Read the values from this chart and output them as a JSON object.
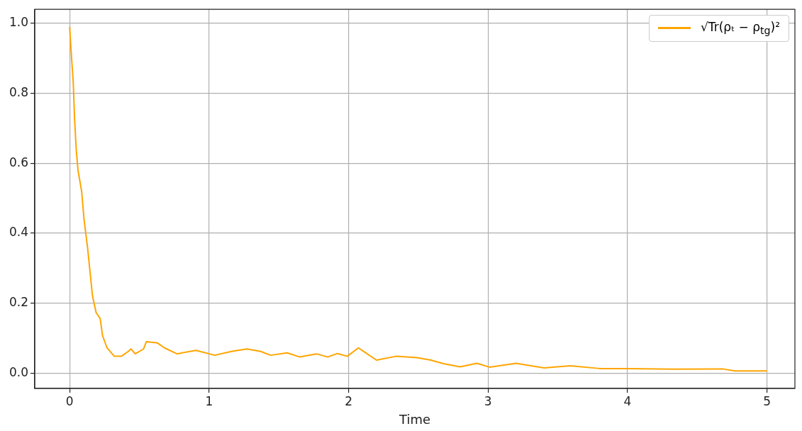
{
  "chart_data": {
    "type": "line",
    "xlabel": "Time",
    "x": [
      0,
      0.009,
      0.026,
      0.035,
      0.047,
      0.06,
      0.086,
      0.103,
      0.129,
      0.146,
      0.164,
      0.19,
      0.219,
      0.236,
      0.267,
      0.32,
      0.37,
      0.42,
      0.44,
      0.47,
      0.53,
      0.55,
      0.63,
      0.68,
      0.77,
      0.905,
      1.04,
      1.16,
      1.27,
      1.37,
      1.44,
      1.56,
      1.65,
      1.77,
      1.85,
      1.92,
      1.99,
      2.07,
      2.2,
      2.34,
      2.49,
      2.59,
      2.68,
      2.8,
      2.92,
      3.01,
      3.2,
      3.4,
      3.59,
      3.8,
      4.01,
      4.32,
      4.68,
      4.77,
      5.0
    ],
    "series": [
      {
        "name": "√Tr(ρₜ − ρ$_{tg}$)²",
        "color": "#ffa500",
        "values": [
          0.99,
          0.93,
          0.83,
          0.73,
          0.64,
          0.58,
          0.52,
          0.44,
          0.357,
          0.29,
          0.22,
          0.173,
          0.156,
          0.107,
          0.073,
          0.048,
          0.048,
          0.062,
          0.069,
          0.055,
          0.069,
          0.09,
          0.086,
          0.072,
          0.055,
          0.065,
          0.051,
          0.062,
          0.069,
          0.062,
          0.051,
          0.058,
          0.046,
          0.055,
          0.046,
          0.056,
          0.048,
          0.072,
          0.037,
          0.048,
          0.044,
          0.037,
          0.027,
          0.018,
          0.028,
          0.017,
          0.028,
          0.015,
          0.021,
          0.013,
          0.013,
          0.011,
          0.012,
          0.006,
          0.006
        ]
      }
    ],
    "xlim": [
      -0.25,
      5.2
    ],
    "xticks": [
      0,
      1,
      2,
      3,
      4,
      5
    ],
    "ylim": [
      -0.044,
      1.04
    ],
    "yticks": [
      {
        "value": 0,
        "label": "0.0"
      },
      {
        "value": 0.2,
        "label": "0.2"
      },
      {
        "value": 0.4,
        "label": "0.4"
      },
      {
        "value": 0.6,
        "label": "0.6"
      },
      {
        "value": 0.8,
        "label": "0.8"
      },
      {
        "value": 1,
        "label": "1.0"
      }
    ],
    "grid": true,
    "legend": "top right",
    "marker": "none",
    "line_style": "solid"
  }
}
